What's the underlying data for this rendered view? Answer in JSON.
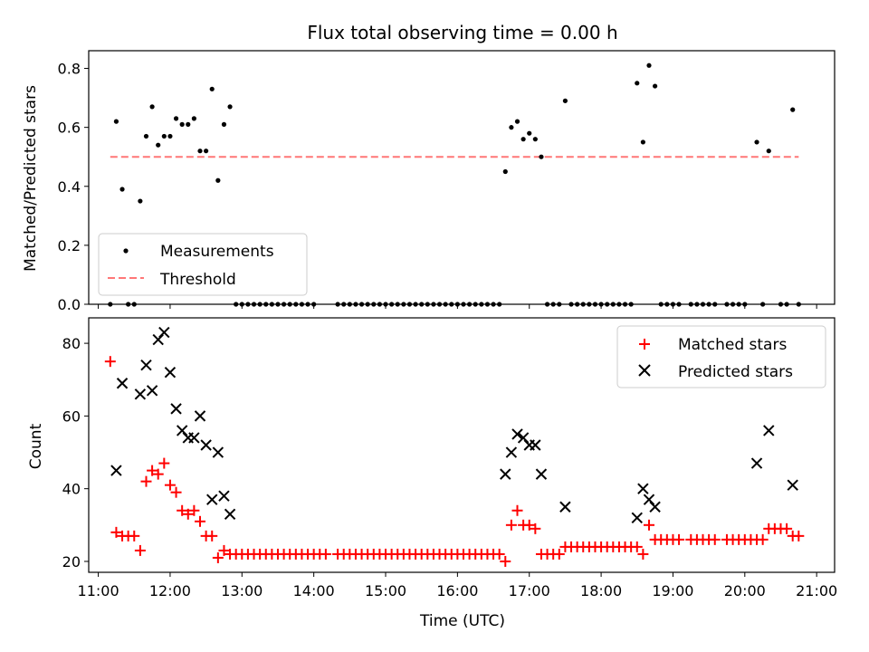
{
  "chart_data": [
    {
      "type": "scatter",
      "title": "Flux total observing time = 0.00 h",
      "ylabel": "Matched/Predicted stars",
      "xlabel": "",
      "xlim": [
        "10:52",
        "21:15"
      ],
      "ylim": [
        0,
        0.86
      ],
      "yticks": [
        0.0,
        0.2,
        0.4,
        0.6,
        0.8
      ],
      "ytick_labels": [
        "0.0",
        "0.2",
        "0.4",
        "0.6",
        "0.8"
      ],
      "xtick_labels_shown": false,
      "legend": "lower-left",
      "threshold": {
        "name": "Threshold",
        "value": 0.5,
        "x_range": [
          "11:10",
          "20:45"
        ],
        "color": "#ff7777",
        "style": "dashed"
      },
      "series": [
        {
          "name": "Measurements",
          "marker": "dot",
          "color": "#000000",
          "points": [
            [
              "11:10",
              0.0
            ],
            [
              "11:15",
              0.62
            ],
            [
              "11:20",
              0.39
            ],
            [
              "11:25",
              0.0
            ],
            [
              "11:30",
              0.0
            ],
            [
              "11:35",
              0.35
            ],
            [
              "11:40",
              0.57
            ],
            [
              "11:45",
              0.67
            ],
            [
              "11:50",
              0.54
            ],
            [
              "11:55",
              0.57
            ],
            [
              "12:00",
              0.57
            ],
            [
              "12:05",
              0.63
            ],
            [
              "12:10",
              0.61
            ],
            [
              "12:15",
              0.61
            ],
            [
              "12:20",
              0.63
            ],
            [
              "12:25",
              0.52
            ],
            [
              "12:30",
              0.52
            ],
            [
              "12:35",
              0.73
            ],
            [
              "12:40",
              0.42
            ],
            [
              "12:45",
              0.61
            ],
            [
              "12:50",
              0.67
            ],
            [
              "12:55",
              0.0
            ],
            [
              "13:00",
              0.0
            ],
            [
              "13:05",
              0.0
            ],
            [
              "13:10",
              0.0
            ],
            [
              "13:15",
              0.0
            ],
            [
              "13:20",
              0.0
            ],
            [
              "13:25",
              0.0
            ],
            [
              "13:30",
              0.0
            ],
            [
              "13:35",
              0.0
            ],
            [
              "13:40",
              0.0
            ],
            [
              "13:45",
              0.0
            ],
            [
              "13:50",
              0.0
            ],
            [
              "13:55",
              0.0
            ],
            [
              "14:00",
              0.0
            ],
            [
              "14:20",
              0.0
            ],
            [
              "14:25",
              0.0
            ],
            [
              "14:30",
              0.0
            ],
            [
              "14:35",
              0.0
            ],
            [
              "14:40",
              0.0
            ],
            [
              "14:45",
              0.0
            ],
            [
              "14:50",
              0.0
            ],
            [
              "14:55",
              0.0
            ],
            [
              "15:00",
              0.0
            ],
            [
              "15:05",
              0.0
            ],
            [
              "15:10",
              0.0
            ],
            [
              "15:15",
              0.0
            ],
            [
              "15:20",
              0.0
            ],
            [
              "15:25",
              0.0
            ],
            [
              "15:30",
              0.0
            ],
            [
              "15:35",
              0.0
            ],
            [
              "15:40",
              0.0
            ],
            [
              "15:45",
              0.0
            ],
            [
              "15:50",
              0.0
            ],
            [
              "15:55",
              0.0
            ],
            [
              "16:00",
              0.0
            ],
            [
              "16:05",
              0.0
            ],
            [
              "16:10",
              0.0
            ],
            [
              "16:15",
              0.0
            ],
            [
              "16:20",
              0.0
            ],
            [
              "16:25",
              0.0
            ],
            [
              "16:30",
              0.0
            ],
            [
              "16:35",
              0.0
            ],
            [
              "16:40",
              0.45
            ],
            [
              "16:45",
              0.6
            ],
            [
              "16:50",
              0.62
            ],
            [
              "16:55",
              0.56
            ],
            [
              "17:00",
              0.58
            ],
            [
              "17:05",
              0.56
            ],
            [
              "17:10",
              0.5
            ],
            [
              "17:15",
              0.0
            ],
            [
              "17:20",
              0.0
            ],
            [
              "17:25",
              0.0
            ],
            [
              "17:30",
              0.69
            ],
            [
              "17:35",
              0.0
            ],
            [
              "17:40",
              0.0
            ],
            [
              "17:45",
              0.0
            ],
            [
              "17:50",
              0.0
            ],
            [
              "17:55",
              0.0
            ],
            [
              "18:00",
              0.0
            ],
            [
              "18:05",
              0.0
            ],
            [
              "18:10",
              0.0
            ],
            [
              "18:15",
              0.0
            ],
            [
              "18:20",
              0.0
            ],
            [
              "18:25",
              0.0
            ],
            [
              "18:30",
              0.75
            ],
            [
              "18:35",
              0.55
            ],
            [
              "18:40",
              0.81
            ],
            [
              "18:45",
              0.74
            ],
            [
              "18:50",
              0.0
            ],
            [
              "18:55",
              0.0
            ],
            [
              "19:00",
              0.0
            ],
            [
              "19:05",
              0.0
            ],
            [
              "19:15",
              0.0
            ],
            [
              "19:20",
              0.0
            ],
            [
              "19:25",
              0.0
            ],
            [
              "19:30",
              0.0
            ],
            [
              "19:35",
              0.0
            ],
            [
              "19:45",
              0.0
            ],
            [
              "19:50",
              0.0
            ],
            [
              "19:55",
              0.0
            ],
            [
              "20:00",
              0.0
            ],
            [
              "20:10",
              0.55
            ],
            [
              "20:15",
              0.0
            ],
            [
              "20:20",
              0.52
            ],
            [
              "20:30",
              0.0
            ],
            [
              "20:35",
              0.0
            ],
            [
              "20:40",
              0.66
            ],
            [
              "20:45",
              0.0
            ]
          ]
        }
      ]
    },
    {
      "type": "scatter",
      "title": "",
      "ylabel": "Count",
      "xlabel": "Time (UTC)",
      "xlim": [
        "10:52",
        "21:15"
      ],
      "ylim": [
        17,
        87
      ],
      "yticks": [
        20,
        40,
        60,
        80
      ],
      "ytick_labels": [
        "20",
        "40",
        "60",
        "80"
      ],
      "xticks": [
        "11:00",
        "12:00",
        "13:00",
        "14:00",
        "15:00",
        "16:00",
        "17:00",
        "18:00",
        "19:00",
        "20:00",
        "21:00"
      ],
      "legend": "top-right",
      "series": [
        {
          "name": "Matched stars",
          "marker": "plus",
          "color": "#ff0000",
          "points": [
            [
              "11:10",
              75
            ],
            [
              "11:15",
              28
            ],
            [
              "11:20",
              27
            ],
            [
              "11:25",
              27
            ],
            [
              "11:30",
              27
            ],
            [
              "11:35",
              23
            ],
            [
              "11:40",
              42
            ],
            [
              "11:45",
              45
            ],
            [
              "11:50",
              44
            ],
            [
              "11:55",
              47
            ],
            [
              "12:00",
              41
            ],
            [
              "12:05",
              39
            ],
            [
              "12:10",
              34
            ],
            [
              "12:15",
              33
            ],
            [
              "12:20",
              34
            ],
            [
              "12:25",
              31
            ],
            [
              "12:30",
              27
            ],
            [
              "12:35",
              27
            ],
            [
              "12:40",
              21
            ],
            [
              "12:45",
              23
            ],
            [
              "12:50",
              22
            ],
            [
              "12:55",
              22
            ],
            [
              "13:00",
              22
            ],
            [
              "13:05",
              22
            ],
            [
              "13:10",
              22
            ],
            [
              "13:15",
              22
            ],
            [
              "13:20",
              22
            ],
            [
              "13:25",
              22
            ],
            [
              "13:30",
              22
            ],
            [
              "13:35",
              22
            ],
            [
              "13:40",
              22
            ],
            [
              "13:45",
              22
            ],
            [
              "13:50",
              22
            ],
            [
              "13:55",
              22
            ],
            [
              "14:00",
              22
            ],
            [
              "14:05",
              22
            ],
            [
              "14:10",
              22
            ],
            [
              "14:20",
              22
            ],
            [
              "14:25",
              22
            ],
            [
              "14:30",
              22
            ],
            [
              "14:35",
              22
            ],
            [
              "14:40",
              22
            ],
            [
              "14:45",
              22
            ],
            [
              "14:50",
              22
            ],
            [
              "14:55",
              22
            ],
            [
              "15:00",
              22
            ],
            [
              "15:05",
              22
            ],
            [
              "15:10",
              22
            ],
            [
              "15:15",
              22
            ],
            [
              "15:20",
              22
            ],
            [
              "15:25",
              22
            ],
            [
              "15:30",
              22
            ],
            [
              "15:35",
              22
            ],
            [
              "15:40",
              22
            ],
            [
              "15:45",
              22
            ],
            [
              "15:50",
              22
            ],
            [
              "15:55",
              22
            ],
            [
              "16:00",
              22
            ],
            [
              "16:05",
              22
            ],
            [
              "16:10",
              22
            ],
            [
              "16:15",
              22
            ],
            [
              "16:20",
              22
            ],
            [
              "16:25",
              22
            ],
            [
              "16:30",
              22
            ],
            [
              "16:35",
              22
            ],
            [
              "16:40",
              20
            ],
            [
              "16:45",
              30
            ],
            [
              "16:50",
              34
            ],
            [
              "16:55",
              30
            ],
            [
              "17:00",
              30
            ],
            [
              "17:05",
              29
            ],
            [
              "17:10",
              22
            ],
            [
              "17:15",
              22
            ],
            [
              "17:20",
              22
            ],
            [
              "17:25",
              22
            ],
            [
              "17:30",
              24
            ],
            [
              "17:35",
              24
            ],
            [
              "17:40",
              24
            ],
            [
              "17:45",
              24
            ],
            [
              "17:50",
              24
            ],
            [
              "17:55",
              24
            ],
            [
              "18:00",
              24
            ],
            [
              "18:05",
              24
            ],
            [
              "18:10",
              24
            ],
            [
              "18:15",
              24
            ],
            [
              "18:20",
              24
            ],
            [
              "18:25",
              24
            ],
            [
              "18:30",
              24
            ],
            [
              "18:35",
              22
            ],
            [
              "18:40",
              30
            ],
            [
              "18:45",
              26
            ],
            [
              "18:50",
              26
            ],
            [
              "18:55",
              26
            ],
            [
              "19:00",
              26
            ],
            [
              "19:05",
              26
            ],
            [
              "19:15",
              26
            ],
            [
              "19:20",
              26
            ],
            [
              "19:25",
              26
            ],
            [
              "19:30",
              26
            ],
            [
              "19:35",
              26
            ],
            [
              "19:45",
              26
            ],
            [
              "19:50",
              26
            ],
            [
              "19:55",
              26
            ],
            [
              "20:00",
              26
            ],
            [
              "20:05",
              26
            ],
            [
              "20:10",
              26
            ],
            [
              "20:15",
              26
            ],
            [
              "20:20",
              29
            ],
            [
              "20:25",
              29
            ],
            [
              "20:30",
              29
            ],
            [
              "20:35",
              29
            ],
            [
              "20:40",
              27
            ],
            [
              "20:45",
              27
            ]
          ]
        },
        {
          "name": "Predicted stars",
          "marker": "x",
          "color": "#000000",
          "points": [
            [
              "11:15",
              45
            ],
            [
              "11:20",
              69
            ],
            [
              "11:35",
              66
            ],
            [
              "11:40",
              74
            ],
            [
              "11:45",
              67
            ],
            [
              "11:50",
              81
            ],
            [
              "11:55",
              83
            ],
            [
              "12:00",
              72
            ],
            [
              "12:05",
              62
            ],
            [
              "12:10",
              56
            ],
            [
              "12:15",
              54
            ],
            [
              "12:20",
              54
            ],
            [
              "12:25",
              60
            ],
            [
              "12:30",
              52
            ],
            [
              "12:35",
              37
            ],
            [
              "12:40",
              50
            ],
            [
              "12:45",
              38
            ],
            [
              "12:50",
              33
            ],
            [
              "16:40",
              44
            ],
            [
              "16:45",
              50
            ],
            [
              "16:50",
              55
            ],
            [
              "16:55",
              54
            ],
            [
              "17:00",
              52
            ],
            [
              "17:05",
              52
            ],
            [
              "17:10",
              44
            ],
            [
              "17:30",
              35
            ],
            [
              "18:30",
              32
            ],
            [
              "18:35",
              40
            ],
            [
              "18:40",
              37
            ],
            [
              "18:45",
              35
            ],
            [
              "20:10",
              47
            ],
            [
              "20:20",
              56
            ],
            [
              "20:40",
              41
            ]
          ]
        }
      ]
    }
  ]
}
